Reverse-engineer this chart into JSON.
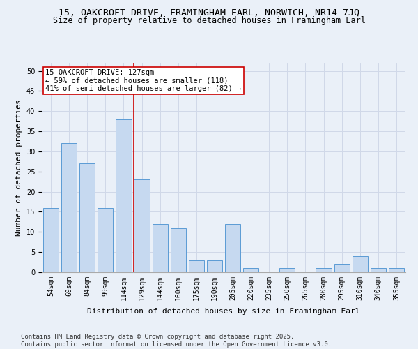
{
  "title": "15, OAKCROFT DRIVE, FRAMINGHAM EARL, NORWICH, NR14 7JQ",
  "subtitle": "Size of property relative to detached houses in Framingham Earl",
  "xlabel": "Distribution of detached houses by size in Framingham Earl",
  "ylabel": "Number of detached properties",
  "categories": [
    "54sqm",
    "69sqm",
    "84sqm",
    "99sqm",
    "114sqm",
    "129sqm",
    "144sqm",
    "160sqm",
    "175sqm",
    "190sqm",
    "205sqm",
    "220sqm",
    "235sqm",
    "250sqm",
    "265sqm",
    "280sqm",
    "295sqm",
    "310sqm",
    "340sqm",
    "355sqm"
  ],
  "values": [
    16,
    32,
    27,
    16,
    38,
    23,
    12,
    11,
    3,
    3,
    12,
    1,
    0,
    1,
    0,
    1,
    2,
    4,
    1,
    1
  ],
  "bar_color": "#c6d9f0",
  "bar_edge_color": "#5b9bd5",
  "grid_color": "#d0d8e8",
  "background_color": "#eaf0f8",
  "vline_x": 4.575,
  "vline_color": "#cc0000",
  "annotation_text": "15 OAKCROFT DRIVE: 127sqm\n← 59% of detached houses are smaller (118)\n41% of semi-detached houses are larger (82) →",
  "annotation_box_color": "#ffffff",
  "annotation_box_edge": "#cc0000",
  "footer": "Contains HM Land Registry data © Crown copyright and database right 2025.\nContains public sector information licensed under the Open Government Licence v3.0.",
  "ylim": [
    0,
    52
  ],
  "yticks": [
    0,
    5,
    10,
    15,
    20,
    25,
    30,
    35,
    40,
    45,
    50
  ],
  "title_fontsize": 9.5,
  "subtitle_fontsize": 8.5,
  "label_fontsize": 8,
  "tick_fontsize": 7,
  "footer_fontsize": 6.5,
  "annotation_fontsize": 7.5
}
